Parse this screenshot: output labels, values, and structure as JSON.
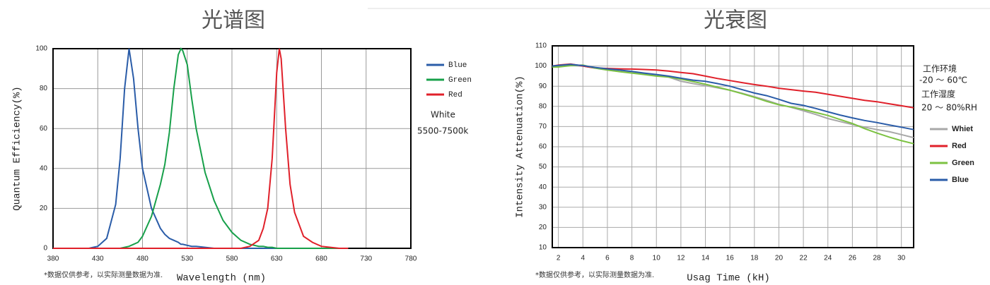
{
  "chart_data": [
    {
      "type": "line",
      "title": "光谱图",
      "x_label": "Wavelength  (nm)",
      "y_label": "Quantum  Efficiency(%)",
      "footnote": "*数据仅供参考，以实际测量数据为准.",
      "annotations": [
        "White",
        "5500-7500k"
      ],
      "x": [
        380,
        400,
        420,
        430,
        440,
        450,
        455,
        460,
        465,
        470,
        475,
        480,
        490,
        500,
        505,
        510,
        515,
        520,
        523,
        525,
        530,
        535,
        540,
        550,
        560,
        570,
        580,
        590,
        600,
        610,
        615,
        620,
        625,
        630,
        633,
        635,
        640,
        645,
        650,
        660,
        670,
        680,
        690,
        700,
        710
      ],
      "series": [
        {
          "name": "Blue",
          "color": "#2a5ca8",
          "values": [
            0,
            0,
            0,
            1,
            5,
            22,
            45,
            80,
            100,
            85,
            60,
            40,
            20,
            10,
            7,
            5,
            4,
            3,
            2,
            2,
            1.5,
            1,
            1,
            0.5,
            0,
            0,
            0,
            0,
            0,
            0,
            0,
            0,
            0,
            0,
            0,
            0,
            0,
            0,
            0,
            0,
            0,
            0,
            0,
            0,
            0
          ]
        },
        {
          "name": "Green",
          "color": "#17a04a",
          "values": [
            0,
            0,
            0,
            0,
            0,
            0,
            0,
            0.5,
            1,
            2,
            3,
            6,
            16,
            32,
            42,
            58,
            80,
            97,
            100,
            99,
            92,
            75,
            60,
            38,
            24,
            14,
            8,
            4,
            2,
            1,
            1,
            0.5,
            0.5,
            0,
            0,
            0,
            0,
            0,
            0,
            0,
            0,
            0,
            0,
            0,
            0
          ]
        },
        {
          "name": "Red",
          "color": "#e0202a",
          "values": [
            0,
            0,
            0,
            0,
            0,
            0,
            0,
            0,
            0,
            0,
            0,
            0,
            0,
            0,
            0,
            0,
            0,
            0,
            0,
            0,
            0,
            0,
            0,
            0,
            0,
            0,
            0,
            0,
            1,
            4,
            10,
            20,
            45,
            88,
            100,
            95,
            60,
            32,
            18,
            6,
            3,
            1,
            0.5,
            0,
            0
          ]
        }
      ],
      "xlim": [
        380,
        780
      ],
      "xticks": [
        380,
        430,
        480,
        530,
        580,
        630,
        680,
        730,
        780
      ],
      "ylim": [
        0,
        100
      ],
      "yticks": [
        0,
        20,
        40,
        60,
        80,
        100
      ],
      "grid": true,
      "legend_position": "right"
    },
    {
      "type": "line",
      "title": "光衰图",
      "x_label": "Usag Time (kH)",
      "y_label": "Intensity Attenuation(%)",
      "footnote": "*数据仅供参考，以实际测量数据为准.",
      "annotations": [
        "工作环境",
        "-20 ～ 60℃",
        "工作湿度",
        "20 ～ 80%RH"
      ],
      "x": [
        1.5,
        2,
        3,
        4,
        5,
        6,
        7,
        8,
        9,
        10,
        11,
        12,
        13,
        14,
        15,
        16,
        17,
        18,
        19,
        20,
        21,
        22,
        23,
        24,
        25,
        26,
        27,
        28,
        29,
        30,
        31
      ],
      "series": [
        {
          "name": "Whiet",
          "color": "#a8a8a8",
          "values": [
            99.5,
            99.8,
            100.3,
            100,
            99,
            98,
            97.3,
            96.8,
            96.3,
            95.5,
            94.5,
            92.5,
            91.3,
            90.3,
            89.2,
            88,
            86.5,
            84.8,
            83,
            81,
            79.5,
            77.8,
            76,
            74,
            72.5,
            71,
            69.7,
            68.5,
            67.5,
            66,
            64.5
          ]
        },
        {
          "name": "Red",
          "color": "#e0202a",
          "values": [
            100,
            100.5,
            101,
            100,
            99,
            98.8,
            98.6,
            98.5,
            98.3,
            98,
            97.5,
            96.8,
            96.2,
            95,
            93.8,
            92.8,
            91.8,
            90.8,
            90,
            89,
            88.3,
            87.6,
            87,
            86,
            85,
            84,
            83,
            82.3,
            81.3,
            80.3,
            79.3
          ]
        },
        {
          "name": "Green",
          "color": "#7cc242",
          "values": [
            99.5,
            99.5,
            100.2,
            100.5,
            99,
            98,
            97.2,
            96.5,
            95.8,
            95,
            94.5,
            93.5,
            92.3,
            91,
            89.5,
            88,
            86.3,
            84.5,
            82.5,
            80.8,
            79.7,
            78.5,
            77,
            75.5,
            73.5,
            71.5,
            69,
            66.8,
            64.8,
            63,
            61.5
          ]
        },
        {
          "name": "Blue",
          "color": "#2a5ca8",
          "values": [
            100,
            100.3,
            100.8,
            100.2,
            99.3,
            98.6,
            98,
            97.3,
            96.5,
            95.8,
            95,
            94,
            93,
            92.4,
            91.3,
            90,
            88.3,
            86.6,
            85.3,
            83.5,
            81.5,
            80.5,
            79,
            77.3,
            75.7,
            74.3,
            73,
            72,
            70.8,
            69.7,
            68.5
          ]
        }
      ],
      "xlim": [
        1.5,
        31
      ],
      "xticks": [
        2,
        4,
        6,
        8,
        10,
        12,
        14,
        16,
        18,
        20,
        22,
        24,
        26,
        28,
        30
      ],
      "ylim": [
        10,
        110
      ],
      "yticks": [
        10,
        20,
        30,
        40,
        50,
        60,
        70,
        80,
        90,
        100,
        110
      ],
      "grid": true,
      "legend_position": "right"
    }
  ]
}
